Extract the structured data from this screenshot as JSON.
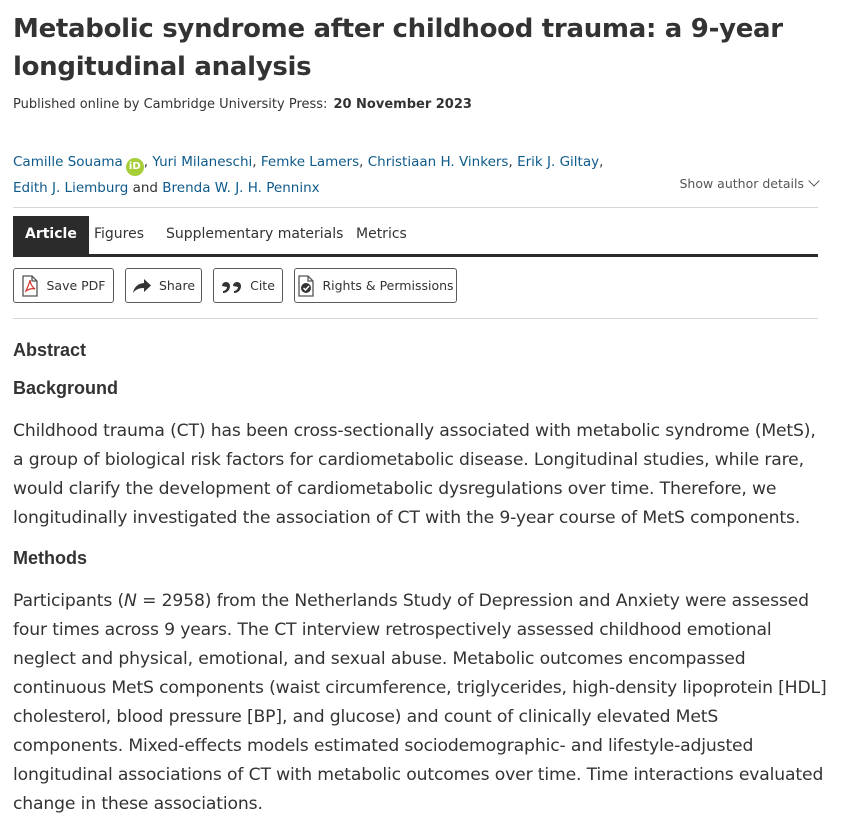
{
  "article": {
    "title": "Metabolic syndrome after childhood trauma: a 9-year longitudinal analysis",
    "published_label": "Published online by Cambridge University Press:",
    "published_date": "20 November 2023",
    "orcid_label": "iD",
    "authors": [
      "Camille Souama",
      "Yuri Milaneschi",
      "Femke Lamers",
      "Christiaan H. Vinkers",
      "Erik J. Giltay",
      "Edith J. Liemburg",
      "Brenda W. J. H. Penninx"
    ],
    "and_text": "and",
    "show_author_details": "Show author details"
  },
  "tabs": [
    "Article",
    "Figures",
    "Supplementary materials",
    "Metrics"
  ],
  "actions": {
    "save_pdf": "Save PDF",
    "share": "Share",
    "cite": "Cite",
    "rights": "Rights & Permissions"
  },
  "abstract": {
    "heading": "Abstract",
    "background_heading": "Background",
    "background_text": "Childhood trauma (CT) has been cross-sectionally associated with metabolic syndrome (MetS), a group of biological risk factors for cardiometabolic disease. Longitudinal studies, while rare, would clarify the development of cardiometabolic dysregulations over time. Therefore, we longitudinally investigated the association of CT with the 9-year course of MetS components.",
    "methods_heading": "Methods",
    "methods_pre": "Participants (",
    "methods_n": "N",
    "methods_rest": " = 2958) from the Netherlands Study of Depression and Anxiety were assessed four times across 9 years. The CT interview retrospectively assessed childhood emotional neglect and physical, emotional, and sexual abuse. Metabolic outcomes encompassed continuous MetS components (waist circumference, triglycerides, high-density lipoprotein [HDL] cholesterol, blood pressure [BP], and glucose) and count of clinically elevated MetS components. Mixed-effects models estimated sociodemographic- and lifestyle-adjusted longitudinal associations of CT with metabolic outcomes over time. Time interactions evaluated change in these associations."
  }
}
